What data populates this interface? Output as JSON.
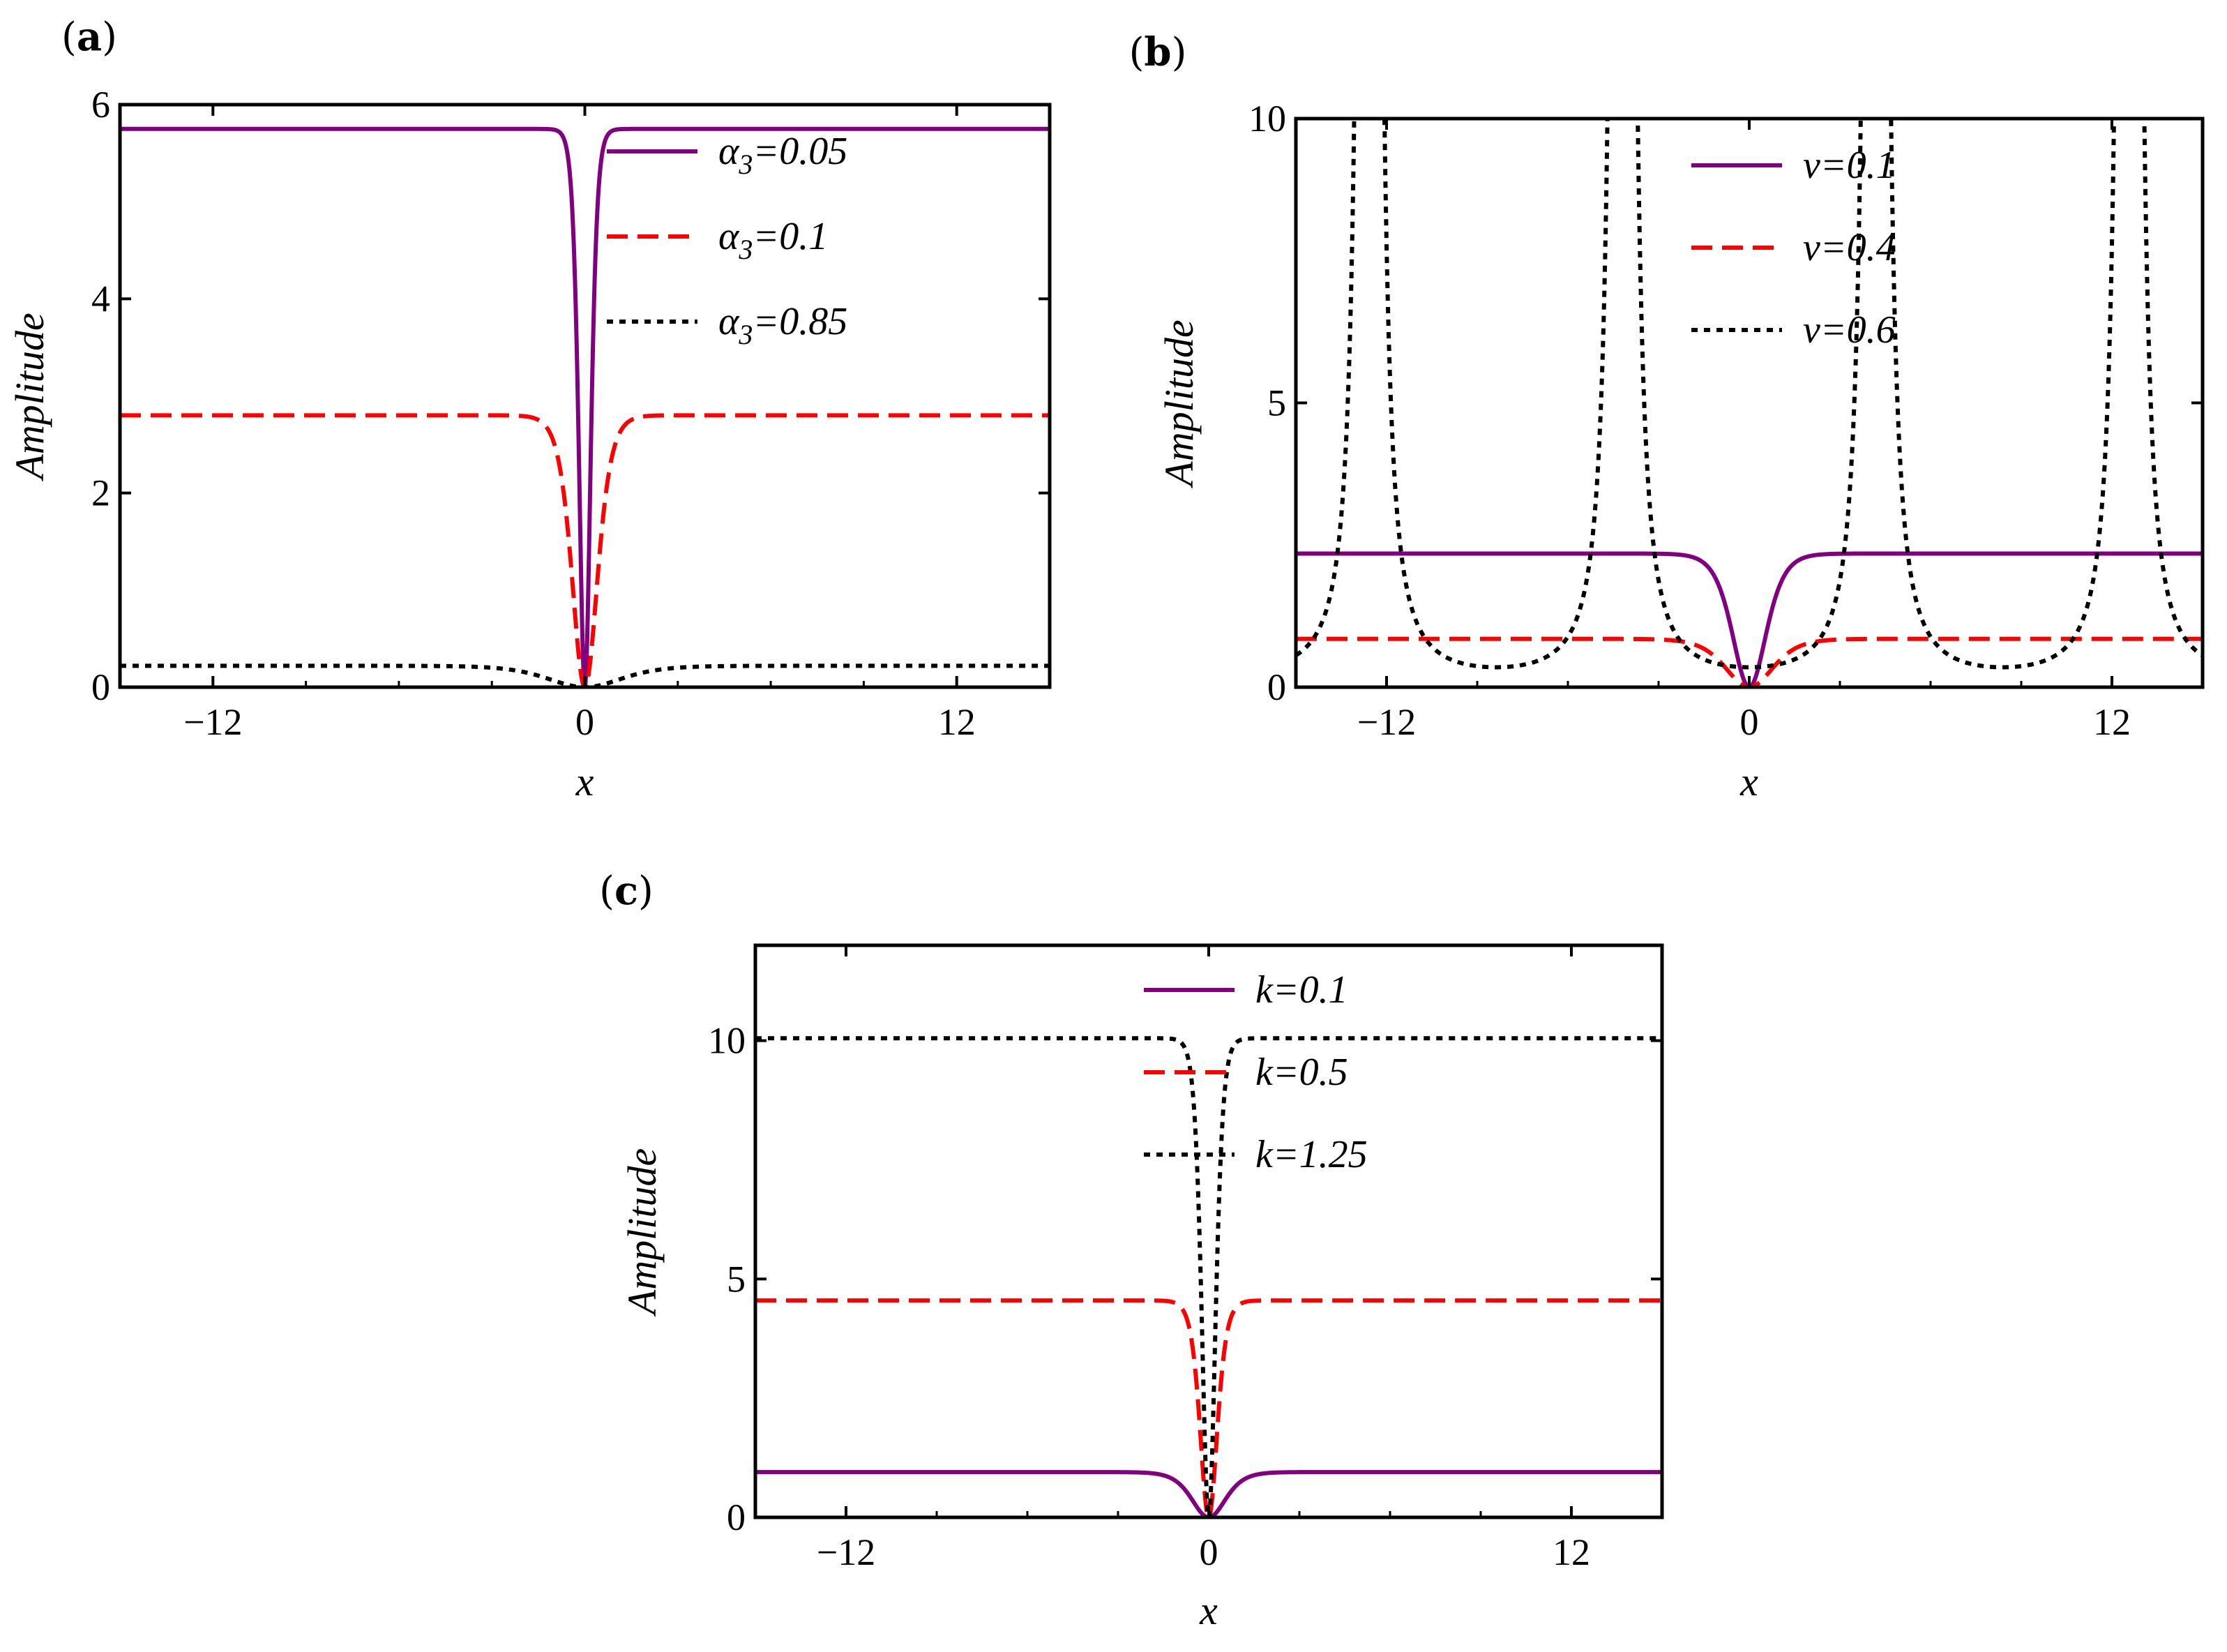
{
  "colors": {
    "purple": "#800080",
    "red": "#ff0000",
    "black": "#000000"
  },
  "chart_data": [
    {
      "panel": "(a)",
      "type": "line",
      "xlabel": "x",
      "ylabel": "Amplitude",
      "xlim": [
        -15,
        15
      ],
      "ylim": [
        0,
        6
      ],
      "xticks": [
        -12,
        0,
        12
      ],
      "xtick_labels": [
        "−12",
        "0",
        "12"
      ],
      "yticks": [
        0,
        2,
        4,
        6
      ],
      "ytick_labels": [
        "0",
        "2",
        "4",
        "6"
      ],
      "legend_position": "top-right",
      "series": [
        {
          "name": "α3=0.05",
          "label_base": "α",
          "label_sub": "3",
          "label_rest": "=0.05",
          "style": "solid",
          "color": "#800080",
          "plateau": 5.75,
          "width": 0.25,
          "form": "tanh2"
        },
        {
          "name": "α3=0.1",
          "label_base": "α",
          "label_sub": "3",
          "label_rest": "=0.1",
          "style": "dashed",
          "color": "#ff0000",
          "plateau": 2.8,
          "width": 0.55,
          "form": "tanh2"
        },
        {
          "name": "α3=0.85",
          "label_base": "α",
          "label_sub": "3",
          "label_rest": "=0.85",
          "style": "dotted",
          "color": "#000000",
          "plateau": 0.22,
          "width": 1.6,
          "form": "tanh2"
        }
      ]
    },
    {
      "panel": "(b)",
      "type": "line",
      "xlabel": "x",
      "ylabel": "Amplitude",
      "xlim": [
        -15,
        15
      ],
      "ylim": [
        0,
        10
      ],
      "xticks": [
        -12,
        0,
        12
      ],
      "xtick_labels": [
        "−12",
        "0",
        "12"
      ],
      "yticks": [
        0,
        5,
        10
      ],
      "ytick_labels": [
        "0",
        "5",
        "10"
      ],
      "legend_position": "top-right",
      "series": [
        {
          "name": "ν=0.1",
          "label_base": "ν",
          "label_sub": "",
          "label_rest": "=0.1",
          "style": "solid",
          "color": "#800080",
          "plateau": 2.35,
          "width": 0.75,
          "form": "tanh2"
        },
        {
          "name": "ν=0.4",
          "label_base": "ν",
          "label_sub": "",
          "label_rest": "=0.4",
          "style": "dashed",
          "color": "#ff0000",
          "plateau": 0.85,
          "width": 1.05,
          "form": "tanh2"
        },
        {
          "name": "ν=0.6",
          "label_base": "ν",
          "label_sub": "",
          "label_rest": "=0.6",
          "style": "dotted",
          "color": "#000000",
          "amp": 0.35,
          "period": 8.38,
          "form": "sec2"
        }
      ]
    },
    {
      "panel": "(c)",
      "type": "line",
      "xlabel": "x",
      "ylabel": "Amplitude",
      "xlim": [
        -15,
        15
      ],
      "ylim": [
        0,
        12
      ],
      "xticks": [
        -12,
        0,
        12
      ],
      "xtick_labels": [
        "−12",
        "0",
        "12"
      ],
      "yticks": [
        0,
        5,
        10
      ],
      "ytick_labels": [
        "0",
        "5",
        "10"
      ],
      "legend_position": "top-right",
      "series": [
        {
          "name": "k=0.1",
          "label_base": "k",
          "label_sub": "",
          "label_rest": "=0.1",
          "style": "solid",
          "color": "#800080",
          "plateau": 0.95,
          "width": 0.75,
          "form": "tanh2"
        },
        {
          "name": "k=0.5",
          "label_base": "k",
          "label_sub": "",
          "label_rest": "=0.5",
          "style": "dashed",
          "color": "#ff0000",
          "plateau": 4.55,
          "width": 0.38,
          "form": "tanh2"
        },
        {
          "name": "k=1.25",
          "label_base": "k",
          "label_sub": "",
          "label_rest": "=1.25",
          "style": "dotted",
          "color": "#000000",
          "plateau": 10.05,
          "width": 0.3,
          "form": "tanh2"
        }
      ]
    }
  ]
}
